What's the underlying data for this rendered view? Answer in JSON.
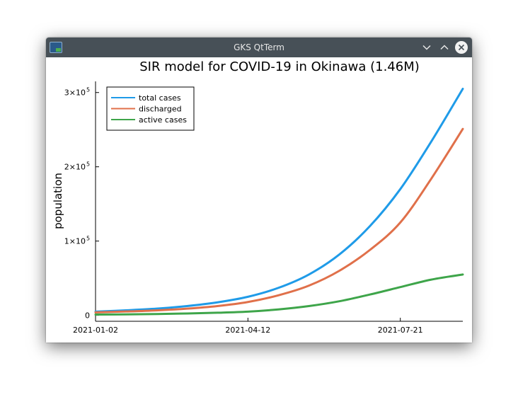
{
  "window": {
    "title": "GKS QtTerm"
  },
  "icons": {
    "app": "gks-app-icon",
    "minimize": "chevron-down-icon",
    "maximize": "chevron-up-icon",
    "close": "close-icon"
  },
  "colors": {
    "titlebar": "#475057",
    "total_cases": "#1f9be8",
    "discharged": "#e0704a",
    "active_cases": "#3ea54a"
  },
  "chart_data": {
    "type": "line",
    "title": "SIR model for COVID-19 in Okinawa (1.46M)",
    "xlabel": "",
    "ylabel": "population",
    "x_ticks": [
      "2021-01-02",
      "2021-04-12",
      "2021-07-21"
    ],
    "y_ticks": [
      {
        "value": 0,
        "mantissa": "0",
        "exp": ""
      },
      {
        "value": 100000,
        "mantissa": "1×10",
        "exp": "5"
      },
      {
        "value": 200000,
        "mantissa": "2×10",
        "exp": "5"
      },
      {
        "value": 300000,
        "mantissa": "3×10",
        "exp": "5"
      }
    ],
    "x_day_range": [
      0,
      241
    ],
    "x_tick_days": [
      0,
      100,
      200
    ],
    "ylim": [
      -8000,
      315000
    ],
    "grid": false,
    "legend_position": "top-left",
    "x_day": [
      0,
      20,
      40,
      60,
      80,
      100,
      120,
      140,
      160,
      180,
      200,
      220,
      241
    ],
    "series": [
      {
        "name": "total cases",
        "values": [
          5000,
          6800,
          9000,
          12500,
          17500,
          25000,
          37000,
          55000,
          82000,
          120000,
          170000,
          233000,
          305000
        ]
      },
      {
        "name": "discharged",
        "values": [
          4000,
          5200,
          6700,
          9000,
          12500,
          18000,
          27000,
          40000,
          60000,
          88000,
          125000,
          183000,
          251000
        ]
      },
      {
        "name": "active cases",
        "values": [
          1000,
          1300,
          1800,
          2500,
          3500,
          5000,
          8000,
          12500,
          19000,
          28000,
          38000,
          48000,
          55000
        ]
      }
    ]
  }
}
